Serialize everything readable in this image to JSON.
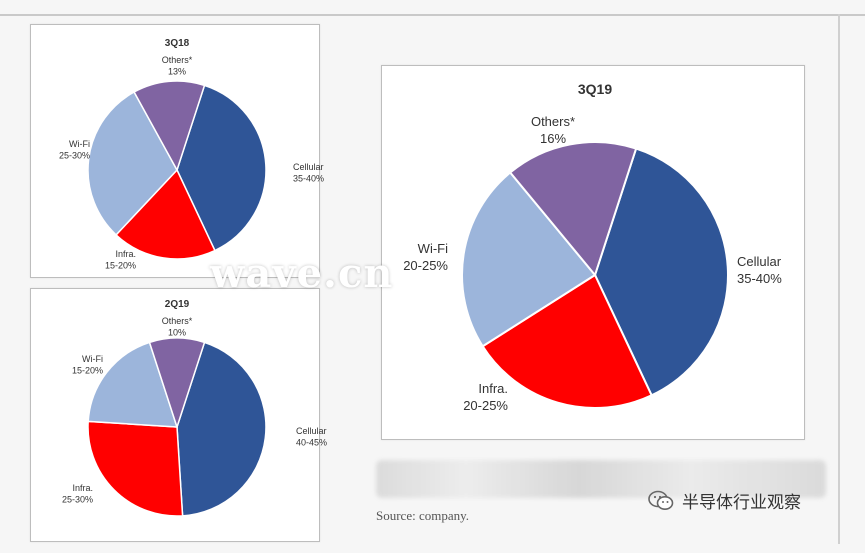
{
  "chart_data": [
    {
      "type": "pie",
      "title": "3Q18",
      "categories": [
        "Cellular",
        "Infra.",
        "Wi-Fi",
        "Others*"
      ],
      "value_labels": [
        "35-40%",
        "15-20%",
        "25-30%",
        "13%"
      ],
      "values": [
        38,
        19,
        30,
        13
      ],
      "colors": [
        "#2f5597",
        "#ff0000",
        "#9cb5db",
        "#8064a2"
      ]
    },
    {
      "type": "pie",
      "title": "2Q19",
      "categories": [
        "Cellular",
        "Infra.",
        "Wi-Fi",
        "Others*"
      ],
      "value_labels": [
        "40-45%",
        "25-30%",
        "15-20%",
        "10%"
      ],
      "values": [
        44,
        27,
        19,
        10
      ],
      "colors": [
        "#2f5597",
        "#ff0000",
        "#9cb5db",
        "#8064a2"
      ]
    },
    {
      "type": "pie",
      "title": "3Q19",
      "categories": [
        "Cellular",
        "Infra.",
        "Wi-Fi",
        "Others*"
      ],
      "value_labels": [
        "35-40%",
        "20-25%",
        "20-25%",
        "16%"
      ],
      "values": [
        38,
        23,
        23,
        16
      ],
      "colors": [
        "#2f5597",
        "#ff0000",
        "#9cb5db",
        "#8064a2"
      ]
    }
  ],
  "source": "Source: company.",
  "watermark": "wave.cn",
  "wechat_account": "半导体行业观察"
}
